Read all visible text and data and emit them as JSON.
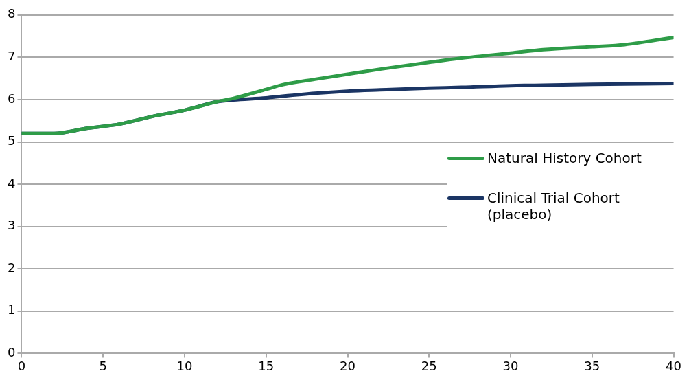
{
  "chart_data": {
    "type": "line",
    "legend": "right",
    "grid": "y",
    "xlim": [
      0,
      40
    ],
    "xticks": [
      0,
      5,
      10,
      15,
      20,
      25,
      30,
      35,
      40
    ],
    "ylim": [
      0,
      8
    ],
    "yticks": [
      0,
      1,
      2,
      3,
      4,
      5,
      6,
      7,
      8
    ],
    "marker": "none",
    "line_style": "solid",
    "series": [
      {
        "name": "Natural History Cohort",
        "color": "#2e9c48",
        "x": [
          0,
          2,
          4,
          6,
          8,
          10,
          12,
          13,
          15,
          16,
          18,
          20,
          22,
          25,
          27,
          30,
          32,
          35,
          37,
          40
        ],
        "values": [
          5.2,
          5.2,
          5.32,
          5.42,
          5.6,
          5.75,
          5.95,
          6.03,
          6.24,
          6.35,
          6.48,
          6.6,
          6.72,
          6.88,
          6.98,
          7.1,
          7.18,
          7.25,
          7.3,
          7.47
        ]
      },
      {
        "name": "Clinical Trial Cohort (placebo)",
        "color": "#1b3564",
        "x": [
          0,
          2,
          4,
          6,
          8,
          10,
          12,
          13,
          15,
          16,
          18,
          20,
          22,
          25,
          27,
          30,
          32,
          35,
          37,
          40
        ],
        "values": [
          5.2,
          5.2,
          5.32,
          5.42,
          5.6,
          5.75,
          5.95,
          5.99,
          6.04,
          6.08,
          6.15,
          6.2,
          6.23,
          6.27,
          6.29,
          6.33,
          6.34,
          6.36,
          6.37,
          6.38
        ]
      }
    ]
  }
}
